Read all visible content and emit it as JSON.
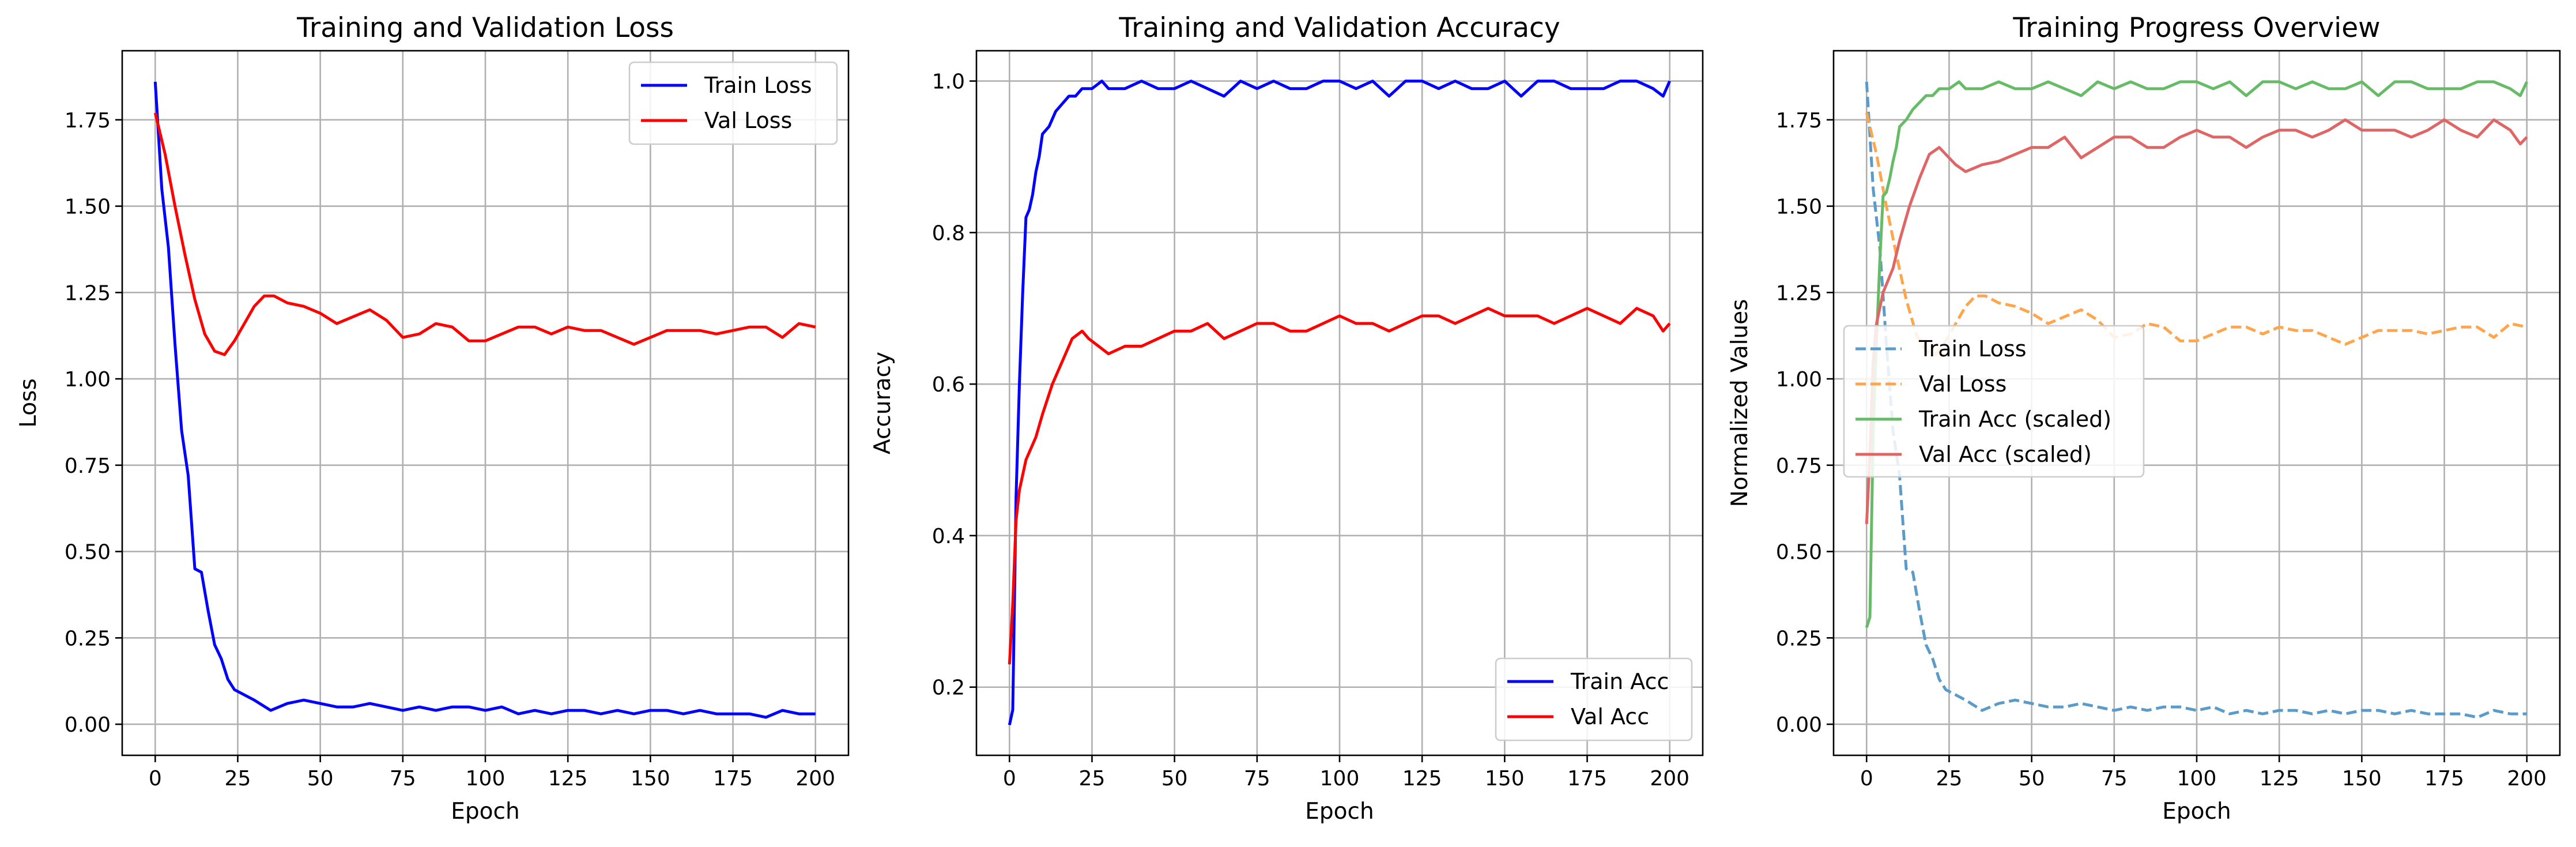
{
  "chart_data": [
    {
      "type": "line",
      "title": "Training and Validation Loss",
      "xlabel": "Epoch",
      "ylabel": "Loss",
      "xlim": [
        -10,
        210
      ],
      "ylim": [
        -0.09,
        1.95
      ],
      "xticks": [
        0,
        25,
        50,
        75,
        100,
        125,
        150,
        175,
        200
      ],
      "yticks": [
        0.0,
        0.25,
        0.5,
        0.75,
        1.0,
        1.25,
        1.5,
        1.75
      ],
      "ytick_labels": [
        "0.00",
        "0.25",
        "0.50",
        "0.75",
        "1.00",
        "1.25",
        "1.50",
        "1.75"
      ],
      "grid": true,
      "legend_position": "upper-right",
      "series": [
        {
          "name": "Train Loss",
          "color": "#0000ff",
          "dash": "solid",
          "x": [
            0,
            2,
            4,
            6,
            8,
            10,
            12,
            14,
            16,
            18,
            20,
            22,
            24,
            26,
            28,
            30,
            35,
            40,
            45,
            50,
            55,
            60,
            65,
            70,
            75,
            80,
            85,
            90,
            95,
            100,
            105,
            110,
            115,
            120,
            125,
            130,
            135,
            140,
            145,
            150,
            155,
            160,
            165,
            170,
            175,
            180,
            185,
            190,
            195,
            200
          ],
          "y": [
            1.86,
            1.55,
            1.38,
            1.1,
            0.85,
            0.72,
            0.45,
            0.44,
            0.33,
            0.23,
            0.19,
            0.13,
            0.1,
            0.09,
            0.08,
            0.07,
            0.04,
            0.06,
            0.07,
            0.06,
            0.05,
            0.05,
            0.06,
            0.05,
            0.04,
            0.05,
            0.04,
            0.05,
            0.05,
            0.04,
            0.05,
            0.03,
            0.04,
            0.03,
            0.04,
            0.04,
            0.03,
            0.04,
            0.03,
            0.04,
            0.04,
            0.03,
            0.04,
            0.03,
            0.03,
            0.03,
            0.02,
            0.04,
            0.03,
            0.03
          ]
        },
        {
          "name": "Val Loss",
          "color": "#ff0000",
          "dash": "solid",
          "x": [
            0,
            3,
            6,
            9,
            12,
            15,
            18,
            21,
            24,
            27,
            30,
            33,
            36,
            40,
            45,
            50,
            55,
            60,
            65,
            70,
            75,
            80,
            85,
            90,
            95,
            100,
            105,
            110,
            115,
            120,
            125,
            130,
            135,
            140,
            145,
            150,
            155,
            160,
            165,
            170,
            175,
            180,
            185,
            190,
            195,
            200
          ],
          "y": [
            1.77,
            1.65,
            1.5,
            1.36,
            1.23,
            1.13,
            1.08,
            1.07,
            1.11,
            1.16,
            1.21,
            1.24,
            1.24,
            1.22,
            1.21,
            1.19,
            1.16,
            1.18,
            1.2,
            1.17,
            1.12,
            1.13,
            1.16,
            1.15,
            1.11,
            1.11,
            1.13,
            1.15,
            1.15,
            1.13,
            1.15,
            1.14,
            1.14,
            1.12,
            1.1,
            1.12,
            1.14,
            1.14,
            1.14,
            1.13,
            1.14,
            1.15,
            1.15,
            1.12,
            1.16,
            1.15
          ]
        }
      ]
    },
    {
      "type": "line",
      "title": "Training and Validation Accuracy",
      "xlabel": "Epoch",
      "ylabel": "Accuracy",
      "xlim": [
        -10,
        210
      ],
      "ylim": [
        0.11,
        1.04
      ],
      "xticks": [
        0,
        25,
        50,
        75,
        100,
        125,
        150,
        175,
        200
      ],
      "yticks": [
        0.2,
        0.4,
        0.6,
        0.8,
        1.0
      ],
      "ytick_labels": [
        "0.2",
        "0.4",
        "0.6",
        "0.8",
        "1.0"
      ],
      "grid": true,
      "legend_position": "lower-right",
      "series": [
        {
          "name": "Train Acc",
          "color": "#0000ff",
          "dash": "solid",
          "x": [
            0,
            1,
            2,
            3,
            4,
            5,
            6,
            7,
            8,
            9,
            10,
            12,
            14,
            16,
            18,
            20,
            22,
            25,
            28,
            30,
            35,
            40,
            45,
            50,
            55,
            60,
            65,
            70,
            75,
            80,
            85,
            90,
            95,
            100,
            105,
            110,
            115,
            120,
            125,
            130,
            135,
            140,
            145,
            150,
            155,
            160,
            165,
            170,
            175,
            180,
            185,
            190,
            195,
            198,
            200
          ],
          "y": [
            0.15,
            0.17,
            0.45,
            0.6,
            0.72,
            0.82,
            0.83,
            0.85,
            0.88,
            0.9,
            0.93,
            0.94,
            0.96,
            0.97,
            0.98,
            0.98,
            0.99,
            0.99,
            1.0,
            0.99,
            0.99,
            1.0,
            0.99,
            0.99,
            1.0,
            0.99,
            0.98,
            1.0,
            0.99,
            1.0,
            0.99,
            0.99,
            1.0,
            1.0,
            0.99,
            1.0,
            0.98,
            1.0,
            1.0,
            0.99,
            1.0,
            0.99,
            0.99,
            1.0,
            0.98,
            1.0,
            1.0,
            0.99,
            0.99,
            0.99,
            1.0,
            1.0,
            0.99,
            0.98,
            1.0
          ]
        },
        {
          "name": "Val Acc",
          "color": "#ff0000",
          "dash": "solid",
          "x": [
            0,
            1,
            2,
            3,
            5,
            8,
            10,
            13,
            16,
            19,
            22,
            24,
            27,
            30,
            35,
            40,
            45,
            50,
            55,
            60,
            65,
            70,
            75,
            80,
            85,
            90,
            95,
            100,
            105,
            110,
            115,
            120,
            125,
            130,
            135,
            140,
            145,
            150,
            155,
            160,
            165,
            170,
            175,
            180,
            185,
            190,
            195,
            198,
            200
          ],
          "y": [
            0.23,
            0.31,
            0.42,
            0.46,
            0.5,
            0.53,
            0.56,
            0.6,
            0.63,
            0.66,
            0.67,
            0.66,
            0.65,
            0.64,
            0.65,
            0.65,
            0.66,
            0.67,
            0.67,
            0.68,
            0.66,
            0.67,
            0.68,
            0.68,
            0.67,
            0.67,
            0.68,
            0.69,
            0.68,
            0.68,
            0.67,
            0.68,
            0.69,
            0.69,
            0.68,
            0.69,
            0.7,
            0.69,
            0.69,
            0.69,
            0.68,
            0.69,
            0.7,
            0.69,
            0.68,
            0.7,
            0.69,
            0.67,
            0.68
          ]
        }
      ]
    },
    {
      "type": "line",
      "title": "Training Progress Overview",
      "xlabel": "Epoch",
      "ylabel": "Normalized Values",
      "xlim": [
        -10,
        210
      ],
      "ylim": [
        -0.09,
        1.95
      ],
      "xticks": [
        0,
        25,
        50,
        75,
        100,
        125,
        150,
        175,
        200
      ],
      "yticks": [
        0.0,
        0.25,
        0.5,
        0.75,
        1.0,
        1.25,
        1.5,
        1.75
      ],
      "ytick_labels": [
        "0.00",
        "0.25",
        "0.50",
        "0.75",
        "1.00",
        "1.25",
        "1.50",
        "1.75"
      ],
      "grid": true,
      "legend_position": "center-left",
      "series": [
        {
          "name": "Train Loss",
          "color": "#5b9bc9",
          "dash": "dashed",
          "x": [
            0,
            2,
            4,
            6,
            8,
            10,
            12,
            14,
            16,
            18,
            20,
            22,
            24,
            26,
            28,
            30,
            35,
            40,
            45,
            50,
            55,
            60,
            65,
            70,
            75,
            80,
            85,
            90,
            95,
            100,
            105,
            110,
            115,
            120,
            125,
            130,
            135,
            140,
            145,
            150,
            155,
            160,
            165,
            170,
            175,
            180,
            185,
            190,
            195,
            200
          ],
          "y": [
            1.86,
            1.55,
            1.38,
            1.1,
            0.85,
            0.72,
            0.45,
            0.44,
            0.33,
            0.23,
            0.19,
            0.13,
            0.1,
            0.09,
            0.08,
            0.07,
            0.04,
            0.06,
            0.07,
            0.06,
            0.05,
            0.05,
            0.06,
            0.05,
            0.04,
            0.05,
            0.04,
            0.05,
            0.05,
            0.04,
            0.05,
            0.03,
            0.04,
            0.03,
            0.04,
            0.04,
            0.03,
            0.04,
            0.03,
            0.04,
            0.04,
            0.03,
            0.04,
            0.03,
            0.03,
            0.03,
            0.02,
            0.04,
            0.03,
            0.03
          ]
        },
        {
          "name": "Val Loss",
          "color": "#ffa64d",
          "dash": "dashed",
          "x": [
            0,
            3,
            6,
            9,
            12,
            15,
            18,
            21,
            24,
            27,
            30,
            33,
            36,
            40,
            45,
            50,
            55,
            60,
            65,
            70,
            75,
            80,
            85,
            90,
            95,
            100,
            105,
            110,
            115,
            120,
            125,
            130,
            135,
            140,
            145,
            150,
            155,
            160,
            165,
            170,
            175,
            180,
            185,
            190,
            195,
            200
          ],
          "y": [
            1.77,
            1.65,
            1.5,
            1.36,
            1.23,
            1.13,
            1.08,
            1.07,
            1.11,
            1.16,
            1.21,
            1.24,
            1.24,
            1.22,
            1.21,
            1.19,
            1.16,
            1.18,
            1.2,
            1.17,
            1.12,
            1.13,
            1.16,
            1.15,
            1.11,
            1.11,
            1.13,
            1.15,
            1.15,
            1.13,
            1.15,
            1.14,
            1.14,
            1.12,
            1.1,
            1.12,
            1.14,
            1.14,
            1.14,
            1.13,
            1.14,
            1.15,
            1.15,
            1.12,
            1.16,
            1.15
          ]
        },
        {
          "name": "Train Acc (scaled)",
          "color": "#66bb66",
          "dash": "solid",
          "x": [
            0,
            1,
            2,
            3,
            4,
            5,
            6,
            7,
            8,
            9,
            10,
            12,
            14,
            16,
            18,
            20,
            22,
            25,
            28,
            30,
            35,
            40,
            45,
            50,
            55,
            60,
            65,
            70,
            75,
            80,
            85,
            90,
            95,
            100,
            105,
            110,
            115,
            120,
            125,
            130,
            135,
            140,
            145,
            150,
            155,
            160,
            165,
            170,
            175,
            180,
            185,
            190,
            195,
            198,
            200
          ],
          "y": [
            0.28,
            0.31,
            0.84,
            1.11,
            1.34,
            1.53,
            1.54,
            1.58,
            1.63,
            1.67,
            1.73,
            1.75,
            1.78,
            1.8,
            1.82,
            1.82,
            1.84,
            1.84,
            1.86,
            1.84,
            1.84,
            1.86,
            1.84,
            1.84,
            1.86,
            1.84,
            1.82,
            1.86,
            1.84,
            1.86,
            1.84,
            1.84,
            1.86,
            1.86,
            1.84,
            1.86,
            1.82,
            1.86,
            1.86,
            1.84,
            1.86,
            1.84,
            1.84,
            1.86,
            1.82,
            1.86,
            1.86,
            1.84,
            1.84,
            1.84,
            1.86,
            1.86,
            1.84,
            1.82,
            1.86
          ]
        },
        {
          "name": "Val Acc (scaled)",
          "color": "#e06666",
          "dash": "solid",
          "x": [
            0,
            1,
            2,
            3,
            5,
            8,
            10,
            13,
            16,
            19,
            22,
            24,
            27,
            30,
            35,
            40,
            45,
            50,
            55,
            60,
            65,
            70,
            75,
            80,
            85,
            90,
            95,
            100,
            105,
            110,
            115,
            120,
            125,
            130,
            135,
            140,
            145,
            150,
            155,
            160,
            165,
            170,
            175,
            180,
            185,
            190,
            195,
            198,
            200
          ],
          "y": [
            0.58,
            0.78,
            1.05,
            1.16,
            1.25,
            1.32,
            1.4,
            1.5,
            1.58,
            1.65,
            1.67,
            1.65,
            1.62,
            1.6,
            1.62,
            1.63,
            1.65,
            1.67,
            1.67,
            1.7,
            1.64,
            1.67,
            1.7,
            1.7,
            1.67,
            1.67,
            1.7,
            1.72,
            1.7,
            1.7,
            1.67,
            1.7,
            1.72,
            1.72,
            1.7,
            1.72,
            1.75,
            1.72,
            1.72,
            1.72,
            1.7,
            1.72,
            1.75,
            1.72,
            1.7,
            1.75,
            1.72,
            1.68,
            1.7
          ]
        }
      ]
    }
  ]
}
